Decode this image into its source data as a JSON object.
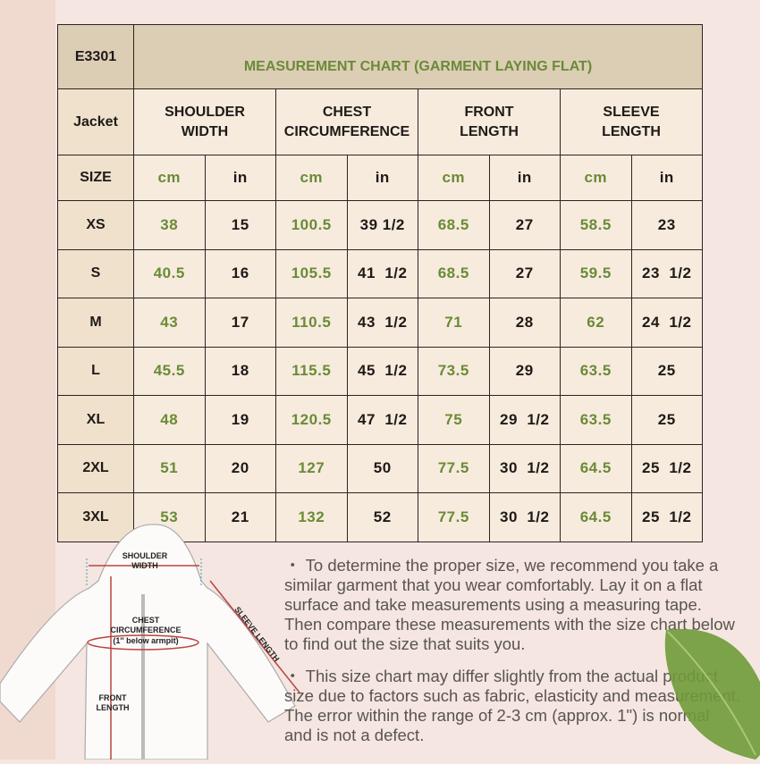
{
  "table": {
    "code": "E3301",
    "title": "MEASUREMENT CHART (GARMENT LAYING FLAT)",
    "row_label": "Jacket",
    "size_label": "SIZE",
    "columns": [
      "SHOULDER WIDTH",
      "CHEST CIRCUMFERENCE",
      "FRONT LENGTH",
      "SLEEVE LENGTH"
    ],
    "units": [
      "cm",
      "in",
      "cm",
      "in",
      "cm",
      "in",
      "cm",
      "in"
    ],
    "rows": [
      {
        "size": "XS",
        "values": [
          "38",
          "15",
          "100.5",
          "39 1/2",
          "68.5",
          "27",
          "58.5",
          "23"
        ]
      },
      {
        "size": "S",
        "values": [
          "40.5",
          "16",
          "105.5",
          "41  1/2",
          "68.5",
          "27",
          "59.5",
          "23  1/2"
        ]
      },
      {
        "size": "M",
        "values": [
          "43",
          "17",
          "110.5",
          "43  1/2",
          "71",
          "28",
          "62",
          "24  1/2"
        ]
      },
      {
        "size": "L",
        "values": [
          "45.5",
          "18",
          "115.5",
          "45  1/2",
          "73.5",
          "29",
          "63.5",
          "25"
        ]
      },
      {
        "size": "XL",
        "values": [
          "48",
          "19",
          "120.5",
          "47  1/2",
          "75",
          "29  1/2",
          "63.5",
          "25"
        ]
      },
      {
        "size": "2XL",
        "values": [
          "51",
          "20",
          "127",
          "50",
          "77.5",
          "30  1/2",
          "64.5",
          "25  1/2"
        ]
      },
      {
        "size": "3XL",
        "values": [
          "53",
          "21",
          "132",
          "52",
          "77.5",
          "30  1/2",
          "64.5",
          "25  1/2"
        ]
      }
    ]
  },
  "diagram": {
    "shoulder_label_1": "SHOULDER",
    "shoulder_label_2": "WIDTH",
    "chest_label_1": "CHEST",
    "chest_label_2": "CIRCUMFERENCE",
    "chest_label_3": "(1″ below armpit)",
    "front_label_1": "FRONT",
    "front_label_2": "LENGTH",
    "sleeve_label": "SLEEVE LENGTH"
  },
  "notes": [
    "・ To determine the proper size, we recommend you take a similar garment that you wear comfortably. Lay it on a flat surface and take measurements using a measuring tape. Then compare these measurements  with the size chart below to find out the size that suits you.",
    "・ This size chart may differ slightly from the actual product size due to factors such as fabric, elasticity and measurement. The error within the range of 2-3 cm (approx. 1\") is normal and is not a defect."
  ],
  "colors": {
    "accent_green": "#6a8b36",
    "header_bg": "#dccdb5",
    "cell_bg": "#f7ebde",
    "arrow_red": "#b8453f"
  }
}
